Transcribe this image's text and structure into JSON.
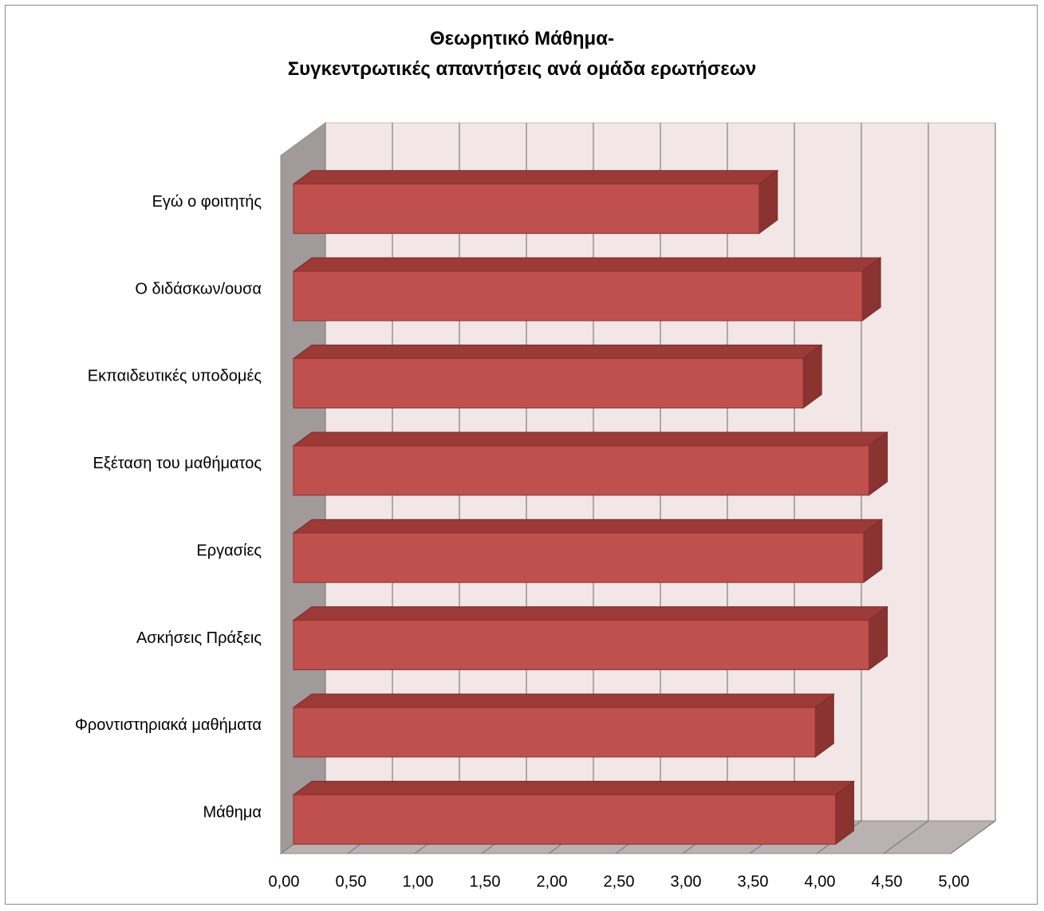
{
  "chart_data": {
    "type": "bar",
    "orientation": "horizontal",
    "style": "3d",
    "title_lines": [
      "Θεωρητικό Μάθημα-",
      "Συγκεντρωτικές απαντήσεις ανά ομάδα ερωτήσεων"
    ],
    "categories": [
      "Εγώ ο φοιτητής",
      "Ο διδάσκων/ουσα",
      "Εκπαιδευτικές υποδομές",
      "Εξέταση του μαθήματος",
      "Εργασίες",
      "Ασκήσεις Πράξεις",
      "Φροντιστηριακά μαθήματα",
      "Μάθημα"
    ],
    "values": [
      3.57,
      4.34,
      3.9,
      4.39,
      4.35,
      4.39,
      3.99,
      4.14
    ],
    "xlim": [
      0,
      5
    ],
    "x_ticks": [
      "0,00",
      "0,50",
      "1,00",
      "1,50",
      "2,00",
      "2,50",
      "3,00",
      "3,50",
      "4,00",
      "4,50",
      "5,00"
    ],
    "xlabel": "",
    "ylabel": "",
    "grid": true,
    "legend": "none",
    "colors": {
      "bar_front": "#c0504d",
      "bar_top": "#9b3a37",
      "bar_side": "#8a3331",
      "back_wall": "#f2e6e6",
      "side_wall": "#a19a9a",
      "floor": "#bab1b1",
      "grid": "#7f7f7f"
    }
  }
}
